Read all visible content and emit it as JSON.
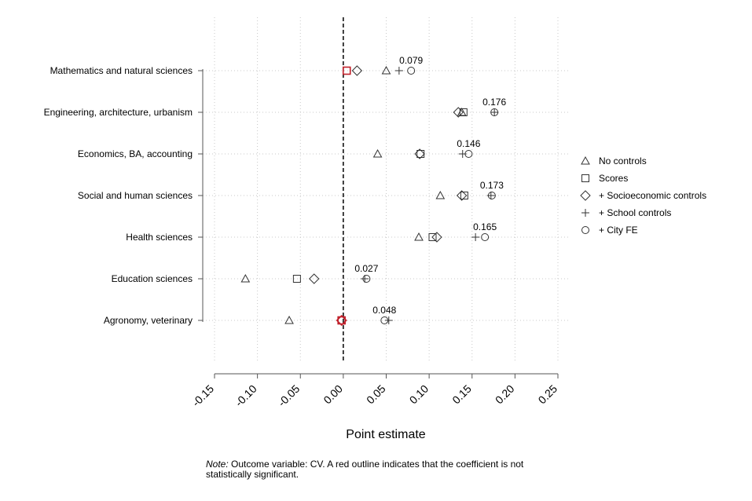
{
  "chart_data": {
    "type": "scatter",
    "orientation": "horizontal",
    "categories": [
      "Mathematics and natural sciences",
      "Engineering, architecture, urbanism",
      "Economics, BA, accounting",
      "Social and human sciences",
      "Health sciences",
      "Education sciences",
      "Agronomy, veterinary"
    ],
    "xlabel": "Point estimate",
    "xlim": [
      -0.15,
      0.25
    ],
    "xticks": [
      "-0.15",
      "-0.10",
      "-0.05",
      "0.00",
      "0.05",
      "0.10",
      "0.15",
      "0.20",
      "0.25"
    ],
    "reference_line": 0,
    "grid": true,
    "legend_position": "right",
    "series": [
      {
        "name": "No controls",
        "marker": "triangle",
        "values": [
          0.05,
          0.138,
          0.04,
          0.113,
          0.088,
          -0.114,
          -0.063
        ],
        "significant": [
          true,
          true,
          true,
          true,
          true,
          true,
          true
        ]
      },
      {
        "name": "Scores",
        "marker": "square",
        "values": [
          0.004,
          0.14,
          0.09,
          0.141,
          0.104,
          -0.054,
          -0.002
        ],
        "significant": [
          false,
          true,
          true,
          true,
          true,
          true,
          false
        ]
      },
      {
        "name": "+ Socioeconomic controls",
        "marker": "diamond",
        "values": [
          0.016,
          0.134,
          0.089,
          0.138,
          0.109,
          -0.034,
          -0.002
        ],
        "significant": [
          true,
          true,
          true,
          true,
          true,
          true,
          false
        ]
      },
      {
        "name": "+ School controls",
        "marker": "plus",
        "values": [
          0.065,
          0.176,
          0.139,
          0.172,
          0.154,
          0.025,
          0.053
        ],
        "significant": [
          true,
          true,
          true,
          true,
          true,
          true,
          true
        ]
      },
      {
        "name": "+ City FE",
        "marker": "circle",
        "values": [
          0.079,
          0.176,
          0.146,
          0.173,
          0.165,
          0.027,
          0.048
        ],
        "significant": [
          true,
          true,
          true,
          true,
          true,
          true,
          true
        ]
      }
    ],
    "annotations": [
      "0.079",
      "0.176",
      "0.146",
      "0.173",
      "0.165",
      "0.027",
      "0.048"
    ],
    "colors": {
      "marker": "#333333",
      "not_significant": "#c0202a",
      "grid": "#c8c8c8",
      "axis": "#555555"
    }
  },
  "note": {
    "prefix": "Note:",
    "text": " Outcome variable: CV. A red outline indicates that the coefficient is not statistically significant."
  }
}
